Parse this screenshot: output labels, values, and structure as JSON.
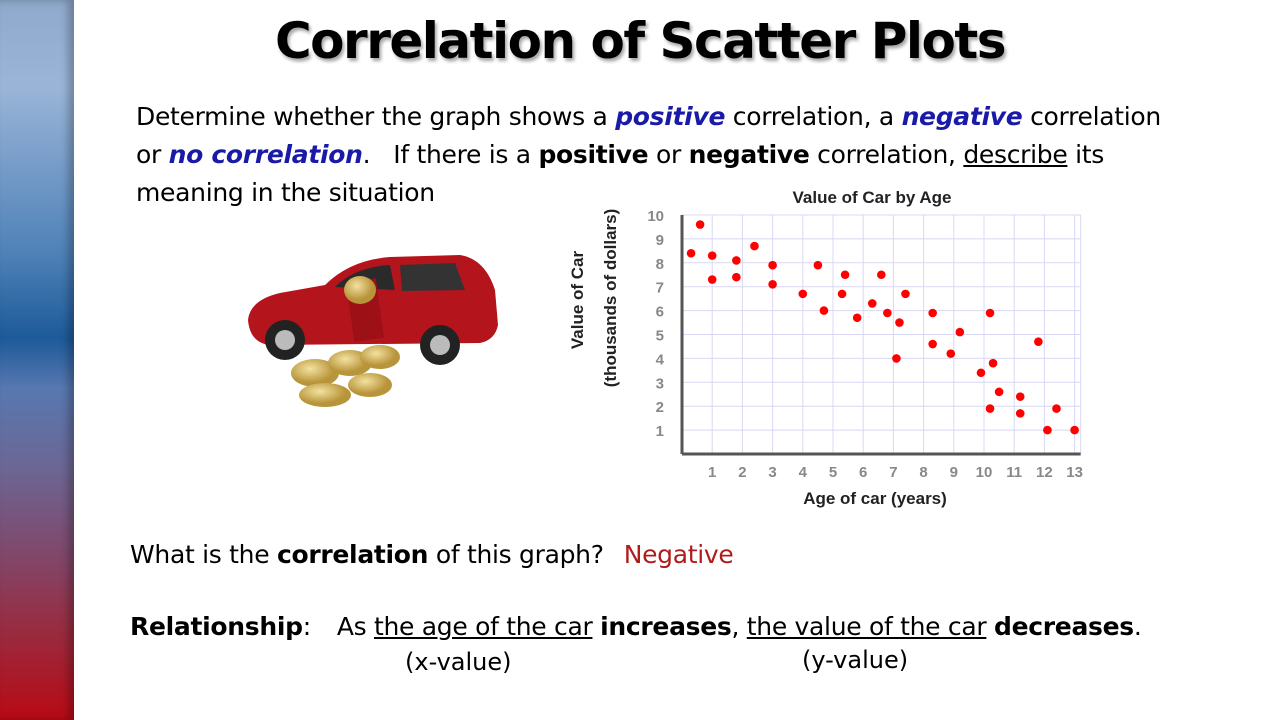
{
  "slide": {
    "title": "Correlation of Scatter Plots",
    "prompt": {
      "p1": "Determine whether the graph shows a ",
      "positive": "positive",
      "p2": " correlation, a ",
      "negative": "negative",
      "p3": " correlation",
      "p4": "or ",
      "none": "no correlation",
      "p5": ".   If there is a ",
      "positive_bold": "positive",
      "p6": " or ",
      "negative_bold": "negative",
      "p7": " correlation, ",
      "describe": "describe",
      "p8": " its",
      "p9": "meaning in the situation"
    },
    "question": {
      "q1": "What is the ",
      "q_bold": "correlation",
      "q2": " of this graph?",
      "answer": "Negative"
    },
    "relationship": {
      "label": "Relationship",
      "colon": ":",
      "as": "As ",
      "x_phrase": "the age of the car",
      "increases": "increases",
      "comma": ", ",
      "y_phrase": "the value of the car",
      "decreases": "decreases",
      "period": ".",
      "x_hint": "(x-value)",
      "y_hint": "(y-value)"
    },
    "colors": {
      "keyword": "#1a1aa8",
      "answer": "#b01c1c",
      "points": "#ff0000"
    }
  },
  "chart_data": {
    "type": "scatter",
    "title": "Value of Car by Age",
    "xlabel": "Age of car (years)",
    "ylabel": "Value of Car",
    "ylabel2": "(thousands of dollars)",
    "xlim": [
      0,
      13.2
    ],
    "ylim": [
      0,
      10
    ],
    "xticks": [
      1,
      2,
      3,
      4,
      5,
      6,
      7,
      8,
      9,
      10,
      11,
      12,
      13
    ],
    "yticks": [
      1,
      2,
      3,
      4,
      5,
      6,
      7,
      8,
      9,
      10
    ],
    "grid": true,
    "points": [
      [
        0.3,
        8.4
      ],
      [
        0.6,
        9.6
      ],
      [
        1,
        8.3
      ],
      [
        1,
        7.3
      ],
      [
        1.8,
        8.1
      ],
      [
        1.8,
        7.4
      ],
      [
        2.4,
        8.7
      ],
      [
        3,
        7.9
      ],
      [
        3,
        7.1
      ],
      [
        4,
        6.7
      ],
      [
        4.5,
        7.9
      ],
      [
        4.7,
        6.0
      ],
      [
        5.3,
        6.7
      ],
      [
        5.4,
        7.5
      ],
      [
        5.8,
        5.7
      ],
      [
        6.3,
        6.3
      ],
      [
        6.6,
        7.5
      ],
      [
        6.8,
        5.9
      ],
      [
        7.2,
        5.5
      ],
      [
        7.1,
        4.0
      ],
      [
        7.4,
        6.7
      ],
      [
        8.3,
        5.9
      ],
      [
        8.3,
        4.6
      ],
      [
        8.9,
        4.2
      ],
      [
        9.2,
        5.1
      ],
      [
        9.9,
        3.4
      ],
      [
        10.2,
        5.9
      ],
      [
        10.3,
        3.8
      ],
      [
        10.2,
        1.9
      ],
      [
        10.5,
        2.6
      ],
      [
        11.2,
        2.4
      ],
      [
        11.2,
        1.7
      ],
      [
        11.8,
        4.7
      ],
      [
        12.1,
        1.0
      ],
      [
        12.4,
        1.9
      ],
      [
        13,
        1.0
      ]
    ]
  }
}
